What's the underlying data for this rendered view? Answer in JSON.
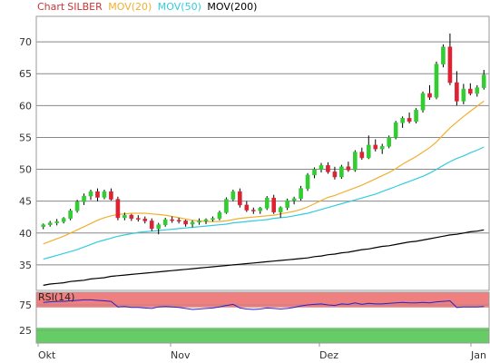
{
  "legend": {
    "chart_label": "Chart",
    "symbol": "SILBER",
    "ma20_label": "MOV(20)",
    "ma50_label": "MOV(50)",
    "ma200_label": "MOV(200)"
  },
  "colors": {
    "chart_label": "#cc3333",
    "symbol": "#cc3333",
    "ma20": "#f0b030",
    "ma50": "#33ccdd",
    "ma200": "#000000",
    "up": "#33cc33",
    "down": "#dd2233",
    "rsi_line": "#2222cc",
    "rsi_over": "#f08080",
    "rsi_under": "#66cc66",
    "grid": "#888888",
    "frame": "#999999"
  },
  "chart_data": [
    {
      "type": "candlestick",
      "title": "Chart SILBER",
      "x_labels": [
        "Okt",
        "Nov",
        "Dez",
        "Jan"
      ],
      "ylim": [
        31,
        74
      ],
      "y_ticks": [
        35,
        40,
        45,
        50,
        55,
        60,
        65,
        70
      ],
      "grid": true,
      "ohlc": [
        [
          41.0,
          41.5,
          40.6,
          41.3
        ],
        [
          41.3,
          41.9,
          41.0,
          41.6
        ],
        [
          41.6,
          42.2,
          41.2,
          41.8
        ],
        [
          41.8,
          42.5,
          41.5,
          42.3
        ],
        [
          42.3,
          43.8,
          42.0,
          43.5
        ],
        [
          43.5,
          45.2,
          43.2,
          44.9
        ],
        [
          44.9,
          46.2,
          44.4,
          45.8
        ],
        [
          45.8,
          46.8,
          45.2,
          46.5
        ],
        [
          46.5,
          47.0,
          45.0,
          45.6
        ],
        [
          45.6,
          46.8,
          45.3,
          46.5
        ],
        [
          46.5,
          47.0,
          45.1,
          45.3
        ],
        [
          45.3,
          45.7,
          42.0,
          42.4
        ],
        [
          42.4,
          43.2,
          42.0,
          42.8
        ],
        [
          42.8,
          43.0,
          41.9,
          42.3
        ],
        [
          42.3,
          42.8,
          41.8,
          42.2
        ],
        [
          42.2,
          42.6,
          41.5,
          41.9
        ],
        [
          41.9,
          42.3,
          40.3,
          40.7
        ],
        [
          40.7,
          41.6,
          39.8,
          41.3
        ],
        [
          41.3,
          42.4,
          41.0,
          42.1
        ],
        [
          42.1,
          42.6,
          41.6,
          42.0
        ],
        [
          42.0,
          42.4,
          41.5,
          41.9
        ],
        [
          41.9,
          42.1,
          41.0,
          41.4
        ],
        [
          41.4,
          42.0,
          40.9,
          41.7
        ],
        [
          41.7,
          42.3,
          41.3,
          41.9
        ],
        [
          41.9,
          42.3,
          41.4,
          42.1
        ],
        [
          42.1,
          42.6,
          41.8,
          42.3
        ],
        [
          42.3,
          43.5,
          42.0,
          43.2
        ],
        [
          43.2,
          45.6,
          43.0,
          45.3
        ],
        [
          45.3,
          46.8,
          45.0,
          46.5
        ],
        [
          46.5,
          47.0,
          44.0,
          44.4
        ],
        [
          44.4,
          45.0,
          43.3,
          43.6
        ],
        [
          43.6,
          44.0,
          43.0,
          43.5
        ],
        [
          43.5,
          44.1,
          43.0,
          43.9
        ],
        [
          43.9,
          45.8,
          43.6,
          45.5
        ],
        [
          45.5,
          46.0,
          43.0,
          43.3
        ],
        [
          43.3,
          44.2,
          42.4,
          44.0
        ],
        [
          44.0,
          45.4,
          43.6,
          45.1
        ],
        [
          45.1,
          45.7,
          44.5,
          45.4
        ],
        [
          45.4,
          47.4,
          45.1,
          47.0
        ],
        [
          47.0,
          49.4,
          46.6,
          49.1
        ],
        [
          49.1,
          50.3,
          48.6,
          50.0
        ],
        [
          50.0,
          51.0,
          49.5,
          50.6
        ],
        [
          50.6,
          51.1,
          49.3,
          49.6
        ],
        [
          49.6,
          50.4,
          48.4,
          48.8
        ],
        [
          48.8,
          50.7,
          48.5,
          50.4
        ],
        [
          50.4,
          51.2,
          49.6,
          49.9
        ],
        [
          49.9,
          53.0,
          49.6,
          52.7
        ],
        [
          52.7,
          53.4,
          51.5,
          51.8
        ],
        [
          51.8,
          55.3,
          51.6,
          53.8
        ],
        [
          53.8,
          54.7,
          52.8,
          53.2
        ],
        [
          53.2,
          54.0,
          52.4,
          53.6
        ],
        [
          53.6,
          55.3,
          53.3,
          55.0
        ],
        [
          55.0,
          57.6,
          54.7,
          57.3
        ],
        [
          57.3,
          58.3,
          56.5,
          58.0
        ],
        [
          58.0,
          58.9,
          57.2,
          57.5
        ],
        [
          57.5,
          59.6,
          57.2,
          59.3
        ],
        [
          59.3,
          62.2,
          58.9,
          61.9
        ],
        [
          61.9,
          63.2,
          60.9,
          61.3
        ],
        [
          61.3,
          66.9,
          61.0,
          66.5
        ],
        [
          66.5,
          69.6,
          66.0,
          69.2
        ],
        [
          69.2,
          71.3,
          63.2,
          63.6
        ],
        [
          63.6,
          65.4,
          60.0,
          60.7
        ],
        [
          60.7,
          63.4,
          60.2,
          62.6
        ],
        [
          62.6,
          63.5,
          61.6,
          61.9
        ],
        [
          61.9,
          63.2,
          61.4,
          62.8
        ],
        [
          62.8,
          65.6,
          62.5,
          64.8
        ]
      ],
      "mov20": [
        38.3,
        38.7,
        39.1,
        39.5,
        40.0,
        40.5,
        41.0,
        41.5,
        42.0,
        42.4,
        42.7,
        42.9,
        43.0,
        43.1,
        43.1,
        43.1,
        43.0,
        42.9,
        42.8,
        42.6,
        42.4,
        42.2,
        42.0,
        41.9,
        41.8,
        41.8,
        41.8,
        41.9,
        42.1,
        42.3,
        42.4,
        42.5,
        42.6,
        42.7,
        42.8,
        43.0,
        43.2,
        43.4,
        43.7,
        44.1,
        44.6,
        45.1,
        45.6,
        45.9,
        46.3,
        46.7,
        47.1,
        47.5,
        48.0,
        48.5,
        49.0,
        49.5,
        50.1,
        50.8,
        51.4,
        52.0,
        52.7,
        53.4,
        54.3,
        55.4,
        56.5,
        57.4,
        58.3,
        59.1,
        59.9,
        60.7
      ],
      "mov50": [
        35.9,
        36.2,
        36.5,
        36.8,
        37.1,
        37.4,
        37.8,
        38.2,
        38.6,
        38.9,
        39.2,
        39.5,
        39.7,
        39.9,
        40.1,
        40.2,
        40.3,
        40.4,
        40.5,
        40.6,
        40.7,
        40.8,
        40.9,
        41.0,
        41.1,
        41.2,
        41.3,
        41.4,
        41.6,
        41.7,
        41.8,
        41.9,
        42.0,
        42.1,
        42.3,
        42.4,
        42.5,
        42.7,
        42.9,
        43.1,
        43.4,
        43.7,
        44.0,
        44.3,
        44.6,
        44.9,
        45.2,
        45.5,
        45.8,
        46.1,
        46.5,
        46.9,
        47.3,
        47.7,
        48.1,
        48.5,
        48.9,
        49.4,
        50.0,
        50.6,
        51.2,
        51.7,
        52.1,
        52.6,
        53.0,
        53.5
      ],
      "mov200": [
        31.8,
        32.0,
        32.1,
        32.2,
        32.4,
        32.5,
        32.6,
        32.8,
        32.9,
        33.0,
        33.2,
        33.3,
        33.4,
        33.5,
        33.6,
        33.7,
        33.8,
        33.9,
        34.0,
        34.1,
        34.2,
        34.3,
        34.4,
        34.5,
        34.6,
        34.7,
        34.8,
        34.9,
        35.0,
        35.1,
        35.2,
        35.3,
        35.4,
        35.5,
        35.6,
        35.7,
        35.8,
        35.9,
        36.0,
        36.1,
        36.3,
        36.4,
        36.6,
        36.7,
        36.9,
        37.0,
        37.2,
        37.4,
        37.5,
        37.7,
        37.9,
        38.0,
        38.2,
        38.4,
        38.6,
        38.7,
        38.9,
        39.1,
        39.3,
        39.5,
        39.7,
        39.8,
        40.0,
        40.2,
        40.3,
        40.5
      ]
    },
    {
      "type": "line",
      "title": "RSI(14)",
      "ylim": [
        0,
        100
      ],
      "y_ticks": [
        25,
        75
      ],
      "overbought_zone": [
        70,
        100
      ],
      "oversold_zone": [
        0,
        30
      ],
      "values": [
        80,
        81,
        82,
        82,
        83,
        84,
        85,
        85,
        84,
        83,
        82,
        71,
        72,
        70,
        70,
        69,
        68,
        71,
        72,
        71,
        70,
        68,
        66,
        67,
        68,
        69,
        71,
        74,
        76,
        69,
        67,
        66,
        67,
        69,
        68,
        67,
        68,
        70,
        73,
        75,
        76,
        77,
        75,
        74,
        77,
        76,
        79,
        76,
        78,
        77,
        77,
        78,
        79,
        80,
        79,
        79,
        80,
        79,
        81,
        82,
        83,
        70,
        71,
        71,
        71,
        72
      ]
    }
  ]
}
